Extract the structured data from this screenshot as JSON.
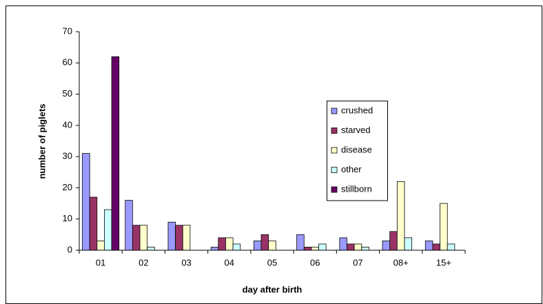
{
  "chart_data": {
    "type": "bar",
    "x_label": "day after birth",
    "y_label": "number of piglets",
    "categories": [
      "01",
      "02",
      "03",
      "04",
      "05",
      "06",
      "07",
      "08+",
      "15+"
    ],
    "series": [
      {
        "name": "crushed",
        "color": "#9999ff",
        "values": [
          31,
          16,
          9,
          1,
          3,
          5,
          4,
          3,
          3
        ]
      },
      {
        "name": "starved",
        "color": "#993366",
        "values": [
          17,
          8,
          8,
          4,
          5,
          1,
          2,
          6,
          2
        ]
      },
      {
        "name": "disease",
        "color": "#ffffcc",
        "values": [
          3,
          8,
          8,
          4,
          3,
          1,
          2,
          22,
          15
        ]
      },
      {
        "name": "other",
        "color": "#ccffff",
        "values": [
          13,
          1,
          0,
          2,
          0,
          2,
          1,
          4,
          2
        ]
      },
      {
        "name": "stillborn",
        "color": "#660066",
        "values": [
          62,
          0,
          0,
          0,
          0,
          0,
          0,
          0,
          0
        ]
      }
    ],
    "ylim": [
      0,
      70
    ],
    "yticks": [
      0,
      10,
      20,
      30,
      40,
      50,
      60,
      70
    ],
    "grid": false,
    "legend": "right"
  }
}
